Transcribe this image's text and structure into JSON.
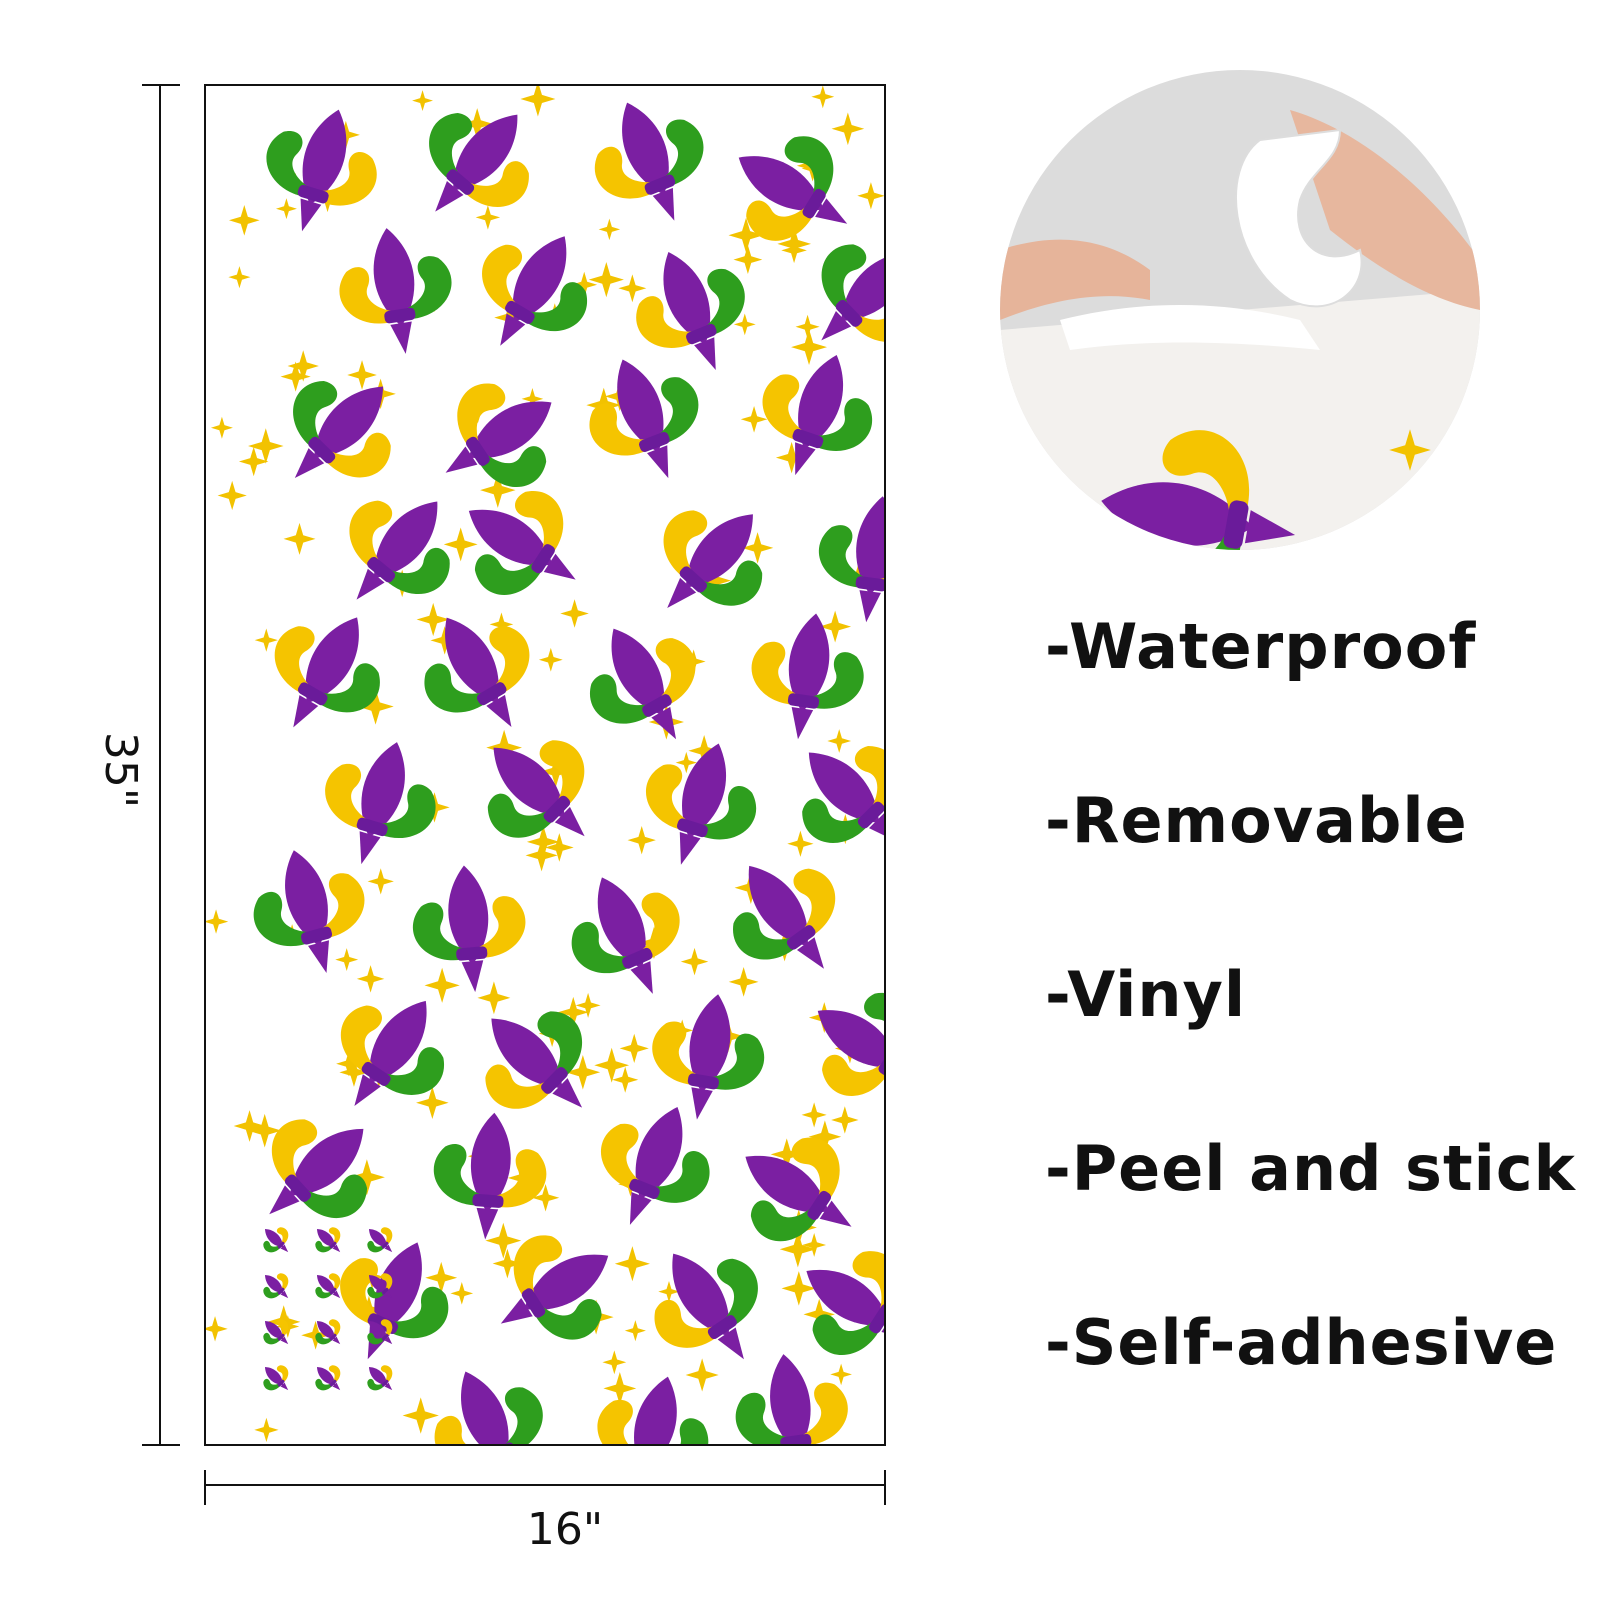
{
  "dimensions": {
    "height": "35\"",
    "width": "16\""
  },
  "features": [
    "-Waterproof",
    "-Removable",
    "-Vinyl",
    "-Peel and stick",
    "-Self-adhesive"
  ]
}
